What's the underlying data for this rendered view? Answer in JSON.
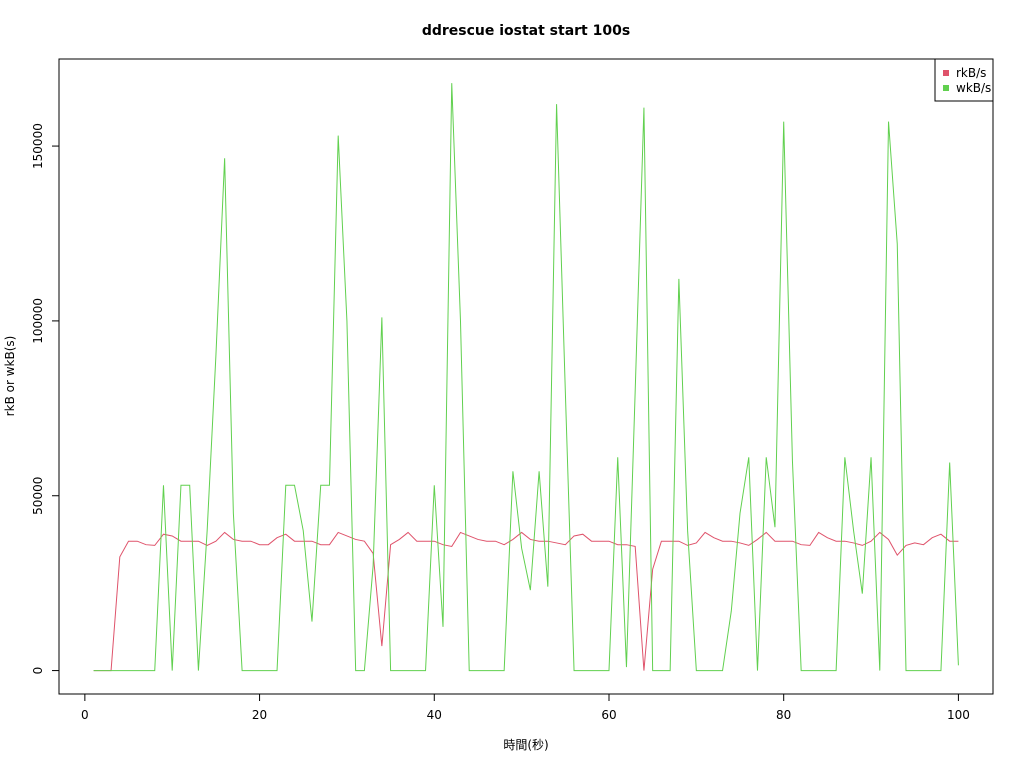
{
  "chart_data": {
    "type": "line",
    "title": "ddrescue iostat start 100s",
    "x_label": "時間(秒)",
    "y_label": "rkB or wkB(s)",
    "x": [
      1,
      2,
      3,
      4,
      5,
      6,
      7,
      8,
      9,
      10,
      11,
      12,
      13,
      14,
      15,
      16,
      17,
      18,
      19,
      20,
      21,
      22,
      23,
      24,
      25,
      26,
      27,
      28,
      29,
      30,
      31,
      32,
      33,
      34,
      35,
      36,
      37,
      38,
      39,
      40,
      41,
      42,
      43,
      44,
      45,
      46,
      47,
      48,
      49,
      50,
      51,
      52,
      53,
      54,
      55,
      56,
      57,
      58,
      59,
      60,
      61,
      62,
      63,
      64,
      65,
      66,
      67,
      68,
      69,
      70,
      71,
      72,
      73,
      74,
      75,
      76,
      77,
      78,
      79,
      80,
      81,
      82,
      83,
      84,
      85,
      86,
      87,
      88,
      89,
      90,
      91,
      92,
      93,
      94,
      95,
      96,
      97,
      98,
      99,
      100
    ],
    "series": [
      {
        "name": "rkB/s",
        "color": "#DF536B",
        "values": [
          0,
          0,
          0,
          32500,
          37000,
          37000,
          36000,
          35800,
          39000,
          38500,
          37000,
          37000,
          37000,
          35800,
          37000,
          39500,
          37500,
          37000,
          37000,
          36000,
          36000,
          38000,
          39000,
          37000,
          37000,
          37000,
          36000,
          36000,
          39500,
          38500,
          37500,
          37000,
          33500,
          7000,
          36000,
          37500,
          39500,
          37000,
          37000,
          37000,
          36000,
          35500,
          39500,
          38500,
          37500,
          37000,
          37000,
          36000,
          37500,
          39500,
          37500,
          37000,
          37000,
          36500,
          36000,
          38500,
          39000,
          37000,
          37000,
          37000,
          36000,
          36000,
          35500,
          0,
          29000,
          37000,
          37000,
          37000,
          35800,
          36500,
          39500,
          38000,
          37000,
          37000,
          36500,
          35800,
          37500,
          39500,
          37000,
          37000,
          37000,
          36000,
          35800,
          39500,
          38000,
          37000,
          37000,
          36500,
          35800,
          37000,
          39500,
          37500,
          33000,
          35800,
          36500,
          36000,
          38000,
          39000,
          37000,
          37000
        ]
      },
      {
        "name": "wkB/s",
        "color": "#61D04F",
        "values": [
          0,
          0,
          0,
          0,
          0,
          0,
          0,
          0,
          53000,
          0,
          53000,
          53000,
          0,
          40000,
          90000,
          146500,
          45000,
          0,
          0,
          0,
          0,
          0,
          53000,
          53000,
          40000,
          14000,
          53000,
          53000,
          153000,
          100000,
          0,
          0,
          30000,
          101000,
          0,
          0,
          0,
          0,
          0,
          53000,
          12500,
          168000,
          100000,
          0,
          0,
          0,
          0,
          0,
          57000,
          35000,
          23000,
          57000,
          24000,
          162000,
          80000,
          0,
          0,
          0,
          0,
          0,
          61000,
          1000,
          80000,
          161000,
          0,
          0,
          0,
          112000,
          40000,
          0,
          0,
          0,
          0,
          17000,
          45000,
          61000,
          0,
          61000,
          41000,
          157000,
          60000,
          0,
          0,
          0,
          0,
          0,
          61000,
          40000,
          22000,
          61000,
          0,
          157000,
          122000,
          0,
          0,
          0,
          0,
          0,
          59500,
          1500
        ]
      }
    ],
    "xlim": [
      -2.96,
      103.96
    ],
    "xticks": [
      0,
      20,
      40,
      60,
      80,
      100
    ],
    "ylim": [
      -6700,
      174900
    ],
    "yticks": [
      0,
      50000,
      100000,
      150000
    ],
    "legend": "top-right"
  }
}
